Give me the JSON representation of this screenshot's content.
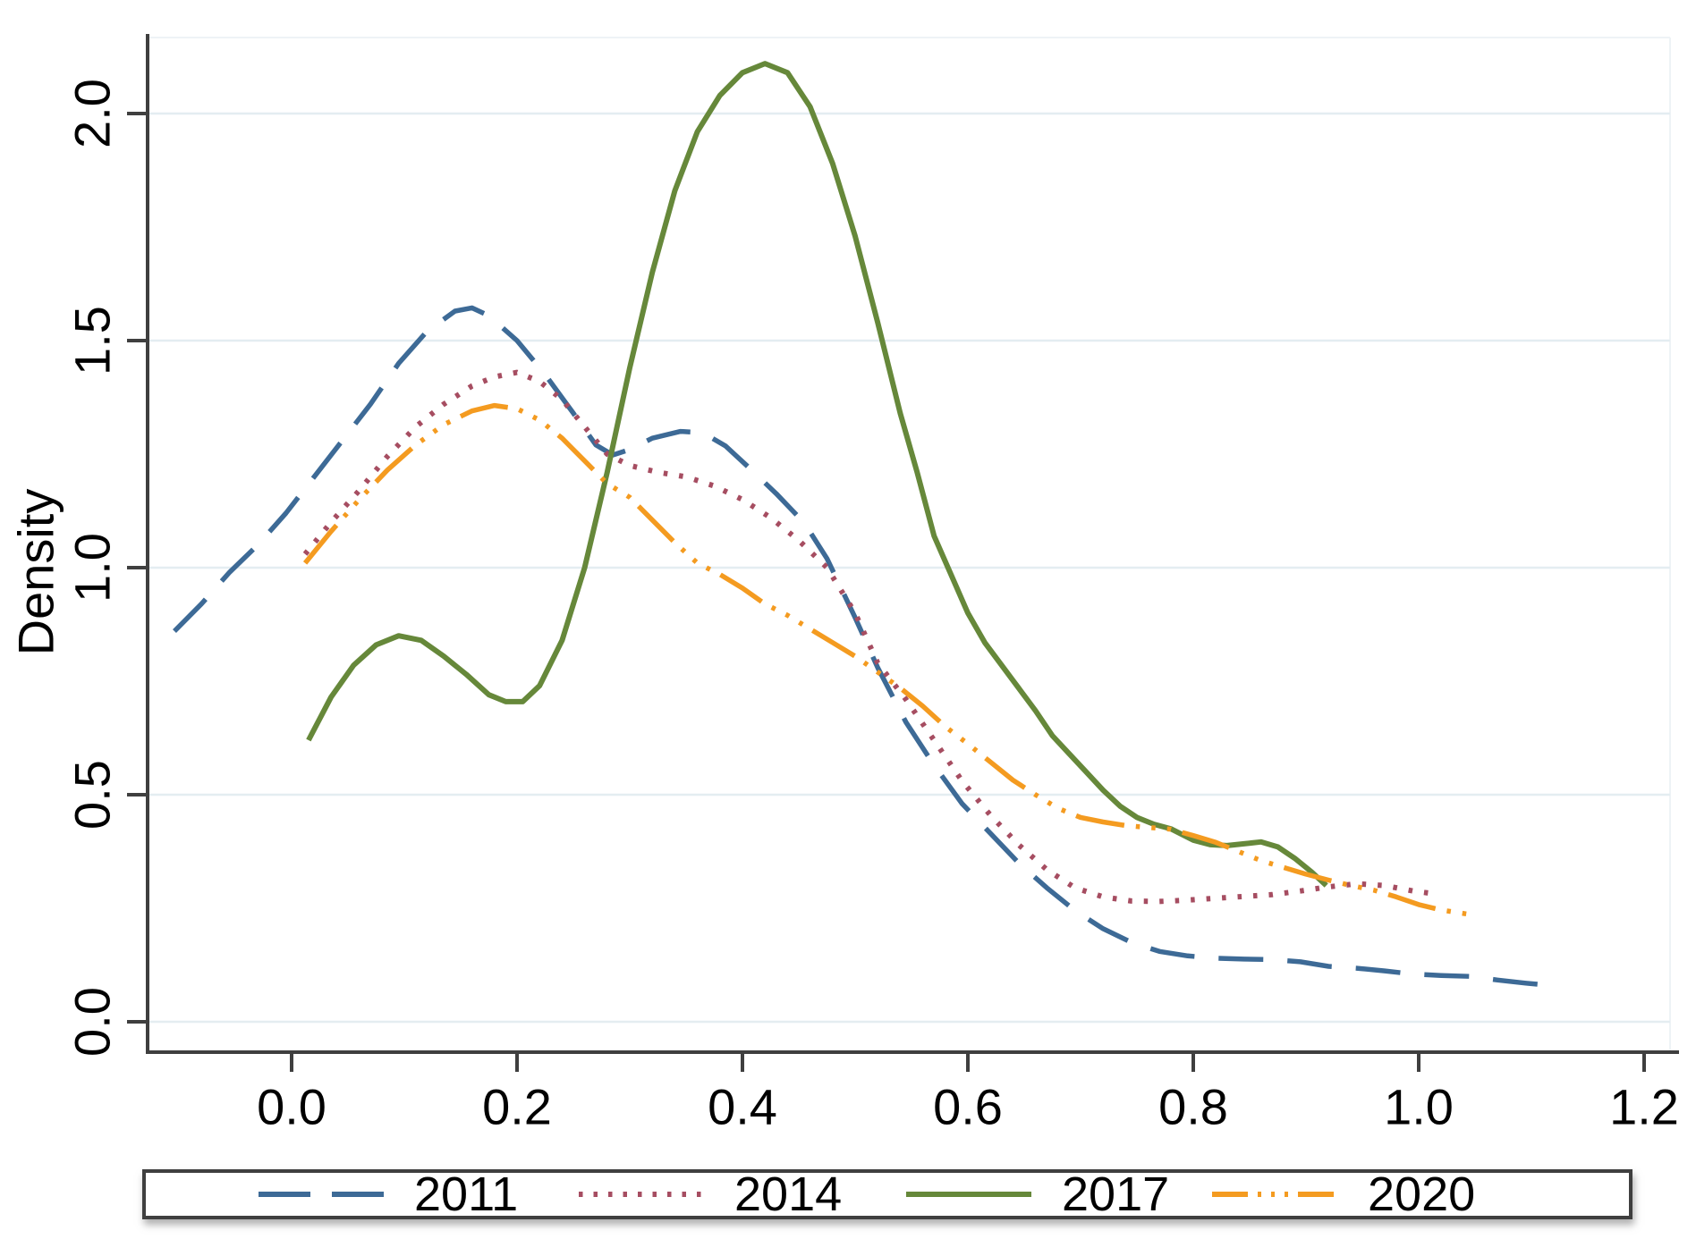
{
  "figure": {
    "background": "#ffffff",
    "axis_color": "#3f3f3f",
    "gridline_color": "#e4edf1",
    "border_faint_color": "#eef3f6",
    "text_color": "#000000"
  },
  "chart_data": {
    "type": "line",
    "title": "",
    "subtitle": "",
    "xlabel": "",
    "ylabel": "Density",
    "xlim": [
      -0.128,
      1.223
    ],
    "ylim": [
      -0.067,
      2.167
    ],
    "x_ticks": [
      0.0,
      0.2,
      0.4,
      0.6,
      0.8,
      1.0,
      1.2
    ],
    "x_tick_labels": [
      "0.0",
      "0.2",
      "0.4",
      "0.6",
      "0.8",
      "1.0",
      "1.2"
    ],
    "y_ticks": [
      0.0,
      0.5,
      1.0,
      1.5,
      2.0
    ],
    "y_tick_labels": [
      "0.0",
      "0.5",
      "1.0",
      "1.5",
      "2.0"
    ],
    "grid": "horizontal gridlines at y ticks",
    "legend_position": "bottom framed box",
    "series": [
      {
        "name": "2011",
        "color": "#3d6a96",
        "style": "dash",
        "points": [
          [
            -0.104,
            0.86
          ],
          [
            -0.08,
            0.92
          ],
          [
            -0.055,
            0.99
          ],
          [
            -0.03,
            1.05
          ],
          [
            -0.005,
            1.12
          ],
          [
            0.02,
            1.2
          ],
          [
            0.045,
            1.28
          ],
          [
            0.07,
            1.36
          ],
          [
            0.095,
            1.45
          ],
          [
            0.12,
            1.52
          ],
          [
            0.145,
            1.565
          ],
          [
            0.16,
            1.572
          ],
          [
            0.175,
            1.555
          ],
          [
            0.2,
            1.5
          ],
          [
            0.225,
            1.425
          ],
          [
            0.25,
            1.34
          ],
          [
            0.27,
            1.27
          ],
          [
            0.285,
            1.248
          ],
          [
            0.3,
            1.26
          ],
          [
            0.32,
            1.285
          ],
          [
            0.345,
            1.3
          ],
          [
            0.365,
            1.297
          ],
          [
            0.385,
            1.268
          ],
          [
            0.405,
            1.222
          ],
          [
            0.43,
            1.163
          ],
          [
            0.455,
            1.098
          ],
          [
            0.475,
            1.02
          ],
          [
            0.5,
            0.89
          ],
          [
            0.52,
            0.78
          ],
          [
            0.545,
            0.66
          ],
          [
            0.57,
            0.565
          ],
          [
            0.595,
            0.48
          ],
          [
            0.62,
            0.415
          ],
          [
            0.645,
            0.35
          ],
          [
            0.67,
            0.295
          ],
          [
            0.695,
            0.245
          ],
          [
            0.72,
            0.205
          ],
          [
            0.745,
            0.175
          ],
          [
            0.77,
            0.155
          ],
          [
            0.795,
            0.145
          ],
          [
            0.82,
            0.14
          ],
          [
            0.845,
            0.138
          ],
          [
            0.87,
            0.137
          ],
          [
            0.895,
            0.132
          ],
          [
            0.92,
            0.122
          ],
          [
            0.945,
            0.118
          ],
          [
            0.97,
            0.112
          ],
          [
            0.995,
            0.105
          ],
          [
            1.02,
            0.102
          ],
          [
            1.045,
            0.1
          ],
          [
            1.07,
            0.092
          ],
          [
            1.095,
            0.085
          ],
          [
            1.117,
            0.08
          ]
        ]
      },
      {
        "name": "2014",
        "color": "#a64d61",
        "style": "dot",
        "points": [
          [
            0.012,
            1.03
          ],
          [
            0.035,
            1.1
          ],
          [
            0.06,
            1.17
          ],
          [
            0.085,
            1.245
          ],
          [
            0.11,
            1.31
          ],
          [
            0.135,
            1.36
          ],
          [
            0.16,
            1.4
          ],
          [
            0.18,
            1.42
          ],
          [
            0.2,
            1.43
          ],
          [
            0.22,
            1.41
          ],
          [
            0.24,
            1.37
          ],
          [
            0.26,
            1.31
          ],
          [
            0.28,
            1.25
          ],
          [
            0.3,
            1.225
          ],
          [
            0.325,
            1.21
          ],
          [
            0.35,
            1.2
          ],
          [
            0.375,
            1.18
          ],
          [
            0.4,
            1.15
          ],
          [
            0.425,
            1.11
          ],
          [
            0.45,
            1.06
          ],
          [
            0.475,
            1.0
          ],
          [
            0.5,
            0.9
          ],
          [
            0.52,
            0.79
          ],
          [
            0.545,
            0.71
          ],
          [
            0.57,
            0.62
          ],
          [
            0.595,
            0.53
          ],
          [
            0.62,
            0.455
          ],
          [
            0.645,
            0.39
          ],
          [
            0.67,
            0.335
          ],
          [
            0.695,
            0.295
          ],
          [
            0.72,
            0.275
          ],
          [
            0.745,
            0.266
          ],
          [
            0.77,
            0.265
          ],
          [
            0.795,
            0.268
          ],
          [
            0.82,
            0.272
          ],
          [
            0.845,
            0.276
          ],
          [
            0.87,
            0.28
          ],
          [
            0.895,
            0.288
          ],
          [
            0.92,
            0.297
          ],
          [
            0.945,
            0.304
          ],
          [
            0.97,
            0.3
          ],
          [
            0.995,
            0.288
          ],
          [
            1.01,
            0.283
          ]
        ]
      },
      {
        "name": "2017",
        "color": "#66883a",
        "style": "solid",
        "points": [
          [
            0.015,
            0.62
          ],
          [
            0.035,
            0.715
          ],
          [
            0.055,
            0.785
          ],
          [
            0.075,
            0.83
          ],
          [
            0.095,
            0.85
          ],
          [
            0.115,
            0.84
          ],
          [
            0.135,
            0.805
          ],
          [
            0.155,
            0.765
          ],
          [
            0.175,
            0.72
          ],
          [
            0.19,
            0.705
          ],
          [
            0.205,
            0.705
          ],
          [
            0.22,
            0.74
          ],
          [
            0.24,
            0.84
          ],
          [
            0.26,
            1.0
          ],
          [
            0.28,
            1.21
          ],
          [
            0.3,
            1.44
          ],
          [
            0.32,
            1.65
          ],
          [
            0.34,
            1.83
          ],
          [
            0.36,
            1.96
          ],
          [
            0.38,
            2.04
          ],
          [
            0.4,
            2.09
          ],
          [
            0.42,
            2.11
          ],
          [
            0.44,
            2.09
          ],
          [
            0.46,
            2.015
          ],
          [
            0.48,
            1.89
          ],
          [
            0.5,
            1.73
          ],
          [
            0.52,
            1.54
          ],
          [
            0.54,
            1.34
          ],
          [
            0.555,
            1.21
          ],
          [
            0.57,
            1.07
          ],
          [
            0.585,
            0.985
          ],
          [
            0.6,
            0.9
          ],
          [
            0.615,
            0.835
          ],
          [
            0.63,
            0.785
          ],
          [
            0.645,
            0.735
          ],
          [
            0.66,
            0.685
          ],
          [
            0.675,
            0.63
          ],
          [
            0.69,
            0.59
          ],
          [
            0.705,
            0.55
          ],
          [
            0.72,
            0.51
          ],
          [
            0.735,
            0.475
          ],
          [
            0.75,
            0.45
          ],
          [
            0.765,
            0.435
          ],
          [
            0.78,
            0.425
          ],
          [
            0.8,
            0.4
          ],
          [
            0.815,
            0.39
          ],
          [
            0.83,
            0.388
          ],
          [
            0.845,
            0.392
          ],
          [
            0.86,
            0.396
          ],
          [
            0.875,
            0.385
          ],
          [
            0.89,
            0.36
          ],
          [
            0.905,
            0.33
          ],
          [
            0.918,
            0.3
          ]
        ]
      },
      {
        "name": "2020",
        "color": "#f49b20",
        "style": "dash-dot-dot",
        "points": [
          [
            0.012,
            1.01
          ],
          [
            0.035,
            1.08
          ],
          [
            0.06,
            1.15
          ],
          [
            0.085,
            1.215
          ],
          [
            0.11,
            1.27
          ],
          [
            0.135,
            1.315
          ],
          [
            0.16,
            1.345
          ],
          [
            0.18,
            1.357
          ],
          [
            0.2,
            1.35
          ],
          [
            0.22,
            1.325
          ],
          [
            0.24,
            1.285
          ],
          [
            0.26,
            1.235
          ],
          [
            0.28,
            1.185
          ],
          [
            0.3,
            1.155
          ],
          [
            0.32,
            1.105
          ],
          [
            0.34,
            1.055
          ],
          [
            0.36,
            1.01
          ],
          [
            0.38,
            0.985
          ],
          [
            0.4,
            0.955
          ],
          [
            0.42,
            0.92
          ],
          [
            0.44,
            0.895
          ],
          [
            0.46,
            0.865
          ],
          [
            0.48,
            0.835
          ],
          [
            0.5,
            0.805
          ],
          [
            0.52,
            0.77
          ],
          [
            0.54,
            0.735
          ],
          [
            0.56,
            0.695
          ],
          [
            0.58,
            0.65
          ],
          [
            0.6,
            0.612
          ],
          [
            0.62,
            0.572
          ],
          [
            0.64,
            0.532
          ],
          [
            0.66,
            0.5
          ],
          [
            0.68,
            0.47
          ],
          [
            0.7,
            0.45
          ],
          [
            0.72,
            0.44
          ],
          [
            0.74,
            0.432
          ],
          [
            0.76,
            0.428
          ],
          [
            0.78,
            0.424
          ],
          [
            0.8,
            0.41
          ],
          [
            0.82,
            0.395
          ],
          [
            0.84,
            0.375
          ],
          [
            0.86,
            0.355
          ],
          [
            0.88,
            0.34
          ],
          [
            0.9,
            0.325
          ],
          [
            0.92,
            0.312
          ],
          [
            0.94,
            0.3
          ],
          [
            0.96,
            0.29
          ],
          [
            0.98,
            0.275
          ],
          [
            1.0,
            0.258
          ],
          [
            1.02,
            0.246
          ],
          [
            1.049,
            0.235
          ]
        ]
      }
    ]
  },
  "legend": {
    "entries": [
      {
        "label": "2011"
      },
      {
        "label": "2014"
      },
      {
        "label": "2017"
      },
      {
        "label": "2020"
      }
    ]
  }
}
